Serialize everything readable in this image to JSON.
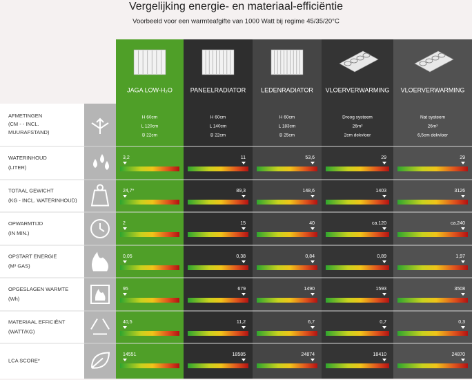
{
  "header": {
    "title": "Vergelijking energie- en materiaal-efficiëntie",
    "subtitle": "Voorbeeld voor een warmteafgifte van 1000 Watt bij regime 45/35/20°C"
  },
  "columns": [
    "JAGA LOW-H₂O",
    "PANEELRADIATOR",
    "LEDENRADIATOR",
    "VLOERVERWARMING",
    "VLOERVERWARMING"
  ],
  "dimensions": {
    "label": [
      "AFMETINGEN",
      "(CM - - INCL.",
      "MUURAFSTAND)"
    ],
    "cells": [
      [
        "H 60cm",
        "L 120cm",
        "B 22cm"
      ],
      [
        "H 60cm",
        "L 140cm",
        "B 22cm"
      ],
      [
        "H 60cm",
        "L 183cm",
        "B 25cm"
      ],
      [
        "Droog systeem",
        "26m²",
        "2cm dekvloer"
      ],
      [
        "Nat systeem",
        "26m²",
        "6,5cm dekvloer"
      ]
    ]
  },
  "rows": [
    {
      "label": [
        "WATERINHOUD",
        "(LITER)"
      ],
      "values": [
        "3,2",
        "11",
        "53,6",
        "29",
        "29"
      ]
    },
    {
      "label": [
        "TOTAAL GEWICHT",
        "(KG - INCL. WATERINHOUD)"
      ],
      "values": [
        "24,7*",
        "89,3",
        "148,6",
        "1403",
        "3126"
      ]
    },
    {
      "label": [
        "OPWARMTIJD",
        "(IN MIN.)"
      ],
      "values": [
        "2",
        "15",
        "40",
        "ca.120",
        "ca.240"
      ]
    },
    {
      "label": [
        "OPSTART ENERGIE",
        "(M³ GAS)"
      ],
      "values": [
        "0,05",
        "0,38",
        "0,84",
        "0,89",
        "1,97"
      ]
    },
    {
      "label": [
        "OPGESLAGEN WARMTE",
        "(Wh)"
      ],
      "values": [
        "95",
        "679",
        "1490",
        "1593",
        "3508"
      ]
    },
    {
      "label": [
        "MATERIAAL EFFICIËNT",
        "(WATT/KG)"
      ],
      "values": [
        "40,5",
        "11,2",
        "6,7",
        "0,7",
        "0,3"
      ]
    },
    {
      "label": [
        "LCA SCORE*"
      ],
      "values": [
        "14551",
        "18585",
        "24874",
        "18410",
        "24870"
      ]
    }
  ]
}
